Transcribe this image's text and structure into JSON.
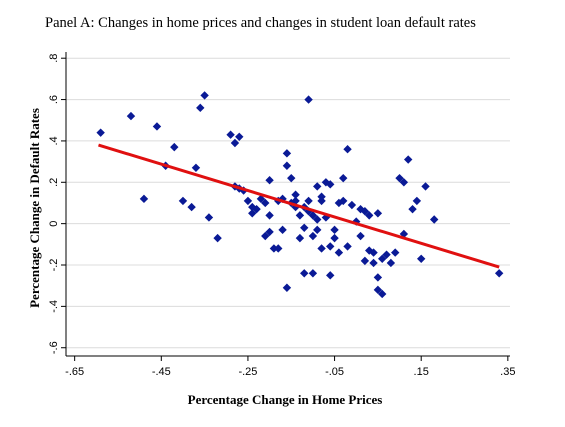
{
  "chart_data": {
    "type": "scatter",
    "title": "Panel A: Changes in home prices and changes in student loan default rates",
    "xlabel": "Percentage Change in Home Prices",
    "ylabel": "Percentage Change in Default Rates",
    "xlim": [
      -0.67,
      0.355
    ],
    "ylim": [
      -0.64,
      0.83
    ],
    "x_ticks": [
      -0.65,
      -0.45,
      -0.25,
      -0.05,
      0.15,
      0.35
    ],
    "x_tick_labels": [
      "-.65",
      "-.45",
      "-.25",
      "-.05",
      ".15",
      ".35"
    ],
    "y_ticks": [
      -0.6,
      -0.4,
      -0.2,
      0,
      0.2,
      0.4,
      0.6,
      0.8
    ],
    "y_tick_labels": [
      "-.6",
      "-.4",
      "-.2",
      "0",
      ".2",
      ".4",
      ".6",
      ".8"
    ],
    "grid": "horizontal",
    "colors": {
      "points": "#0a1a96",
      "fit_line": "#e01010"
    },
    "series": [
      {
        "kind": "points",
        "marker": "diamond",
        "points": [
          [
            -0.59,
            0.44
          ],
          [
            -0.52,
            0.52
          ],
          [
            -0.46,
            0.47
          ],
          [
            -0.42,
            0.37
          ],
          [
            -0.35,
            0.62
          ],
          [
            -0.36,
            0.56
          ],
          [
            -0.49,
            0.12
          ],
          [
            -0.44,
            0.28
          ],
          [
            -0.4,
            0.11
          ],
          [
            -0.38,
            0.08
          ],
          [
            -0.37,
            0.27
          ],
          [
            -0.34,
            0.03
          ],
          [
            -0.32,
            -0.07
          ],
          [
            -0.29,
            0.43
          ],
          [
            -0.28,
            0.39
          ],
          [
            -0.27,
            0.42
          ],
          [
            -0.28,
            0.18
          ],
          [
            -0.26,
            0.16
          ],
          [
            -0.25,
            0.11
          ],
          [
            -0.24,
            0.08
          ],
          [
            -0.23,
            0.07
          ],
          [
            -0.22,
            0.12
          ],
          [
            -0.21,
            0.1
          ],
          [
            -0.21,
            -0.06
          ],
          [
            -0.2,
            0.21
          ],
          [
            -0.2,
            0.04
          ],
          [
            -0.19,
            -0.12
          ],
          [
            -0.18,
            -0.12
          ],
          [
            -0.18,
            0.11
          ],
          [
            -0.17,
            -0.03
          ],
          [
            -0.16,
            0.34
          ],
          [
            -0.16,
            0.28
          ],
          [
            -0.15,
            0.22
          ],
          [
            -0.15,
            0.1
          ],
          [
            -0.14,
            0.14
          ],
          [
            -0.14,
            0.08
          ],
          [
            -0.13,
            0.04
          ],
          [
            -0.13,
            -0.07
          ],
          [
            -0.12,
            -0.24
          ],
          [
            -0.12,
            0.08
          ],
          [
            -0.11,
            0.11
          ],
          [
            -0.11,
            0.06
          ],
          [
            -0.1,
            0.04
          ],
          [
            -0.1,
            -0.06
          ],
          [
            -0.09,
            0.02
          ],
          [
            -0.09,
            0.18
          ],
          [
            -0.08,
            0.13
          ],
          [
            -0.08,
            0.11
          ],
          [
            -0.07,
            0.2
          ],
          [
            -0.07,
            0.03
          ],
          [
            -0.06,
            -0.11
          ],
          [
            -0.06,
            -0.25
          ],
          [
            -0.05,
            -0.03
          ],
          [
            -0.05,
            -0.07
          ],
          [
            -0.04,
            -0.14
          ],
          [
            -0.04,
            0.1
          ],
          [
            -0.03,
            0.22
          ],
          [
            -0.02,
            0.36
          ],
          [
            -0.02,
            -0.11
          ],
          [
            -0.01,
            0.09
          ],
          [
            0,
            0.01
          ],
          [
            0.01,
            0.07
          ],
          [
            0.01,
            -0.06
          ],
          [
            0.02,
            -0.18
          ],
          [
            0.03,
            -0.13
          ],
          [
            0.04,
            -0.14
          ],
          [
            0.04,
            -0.19
          ],
          [
            0.05,
            -0.26
          ],
          [
            0.05,
            -0.32
          ],
          [
            0.06,
            -0.34
          ],
          [
            0.07,
            -0.15
          ],
          [
            0.08,
            -0.19
          ],
          [
            0.09,
            -0.14
          ],
          [
            0.1,
            0.22
          ],
          [
            0.11,
            0.2
          ],
          [
            0.12,
            0.31
          ],
          [
            0.13,
            0.07
          ],
          [
            0.14,
            0.11
          ],
          [
            0.15,
            -0.17
          ],
          [
            0.16,
            0.18
          ],
          [
            0.18,
            0.02
          ],
          [
            -0.16,
            -0.31
          ],
          [
            -0.1,
            -0.24
          ],
          [
            -0.08,
            -0.12
          ],
          [
            -0.12,
            -0.02
          ],
          [
            -0.14,
            0.11
          ],
          [
            -0.06,
            0.19
          ],
          [
            -0.03,
            0.11
          ],
          [
            0.03,
            0.04
          ],
          [
            0.05,
            0.05
          ],
          [
            -0.11,
            0.6
          ],
          [
            -0.2,
            -0.04
          ],
          [
            -0.09,
            -0.03
          ],
          [
            0.06,
            -0.17
          ],
          [
            0.11,
            -0.05
          ],
          [
            0.33,
            -0.24
          ],
          [
            -0.27,
            0.17
          ],
          [
            -0.24,
            0.05
          ],
          [
            -0.17,
            0.12
          ],
          [
            0.02,
            0.06
          ]
        ]
      },
      {
        "kind": "fit_line",
        "points": [
          [
            -0.595,
            0.38
          ],
          [
            0.33,
            -0.21
          ]
        ]
      }
    ]
  }
}
